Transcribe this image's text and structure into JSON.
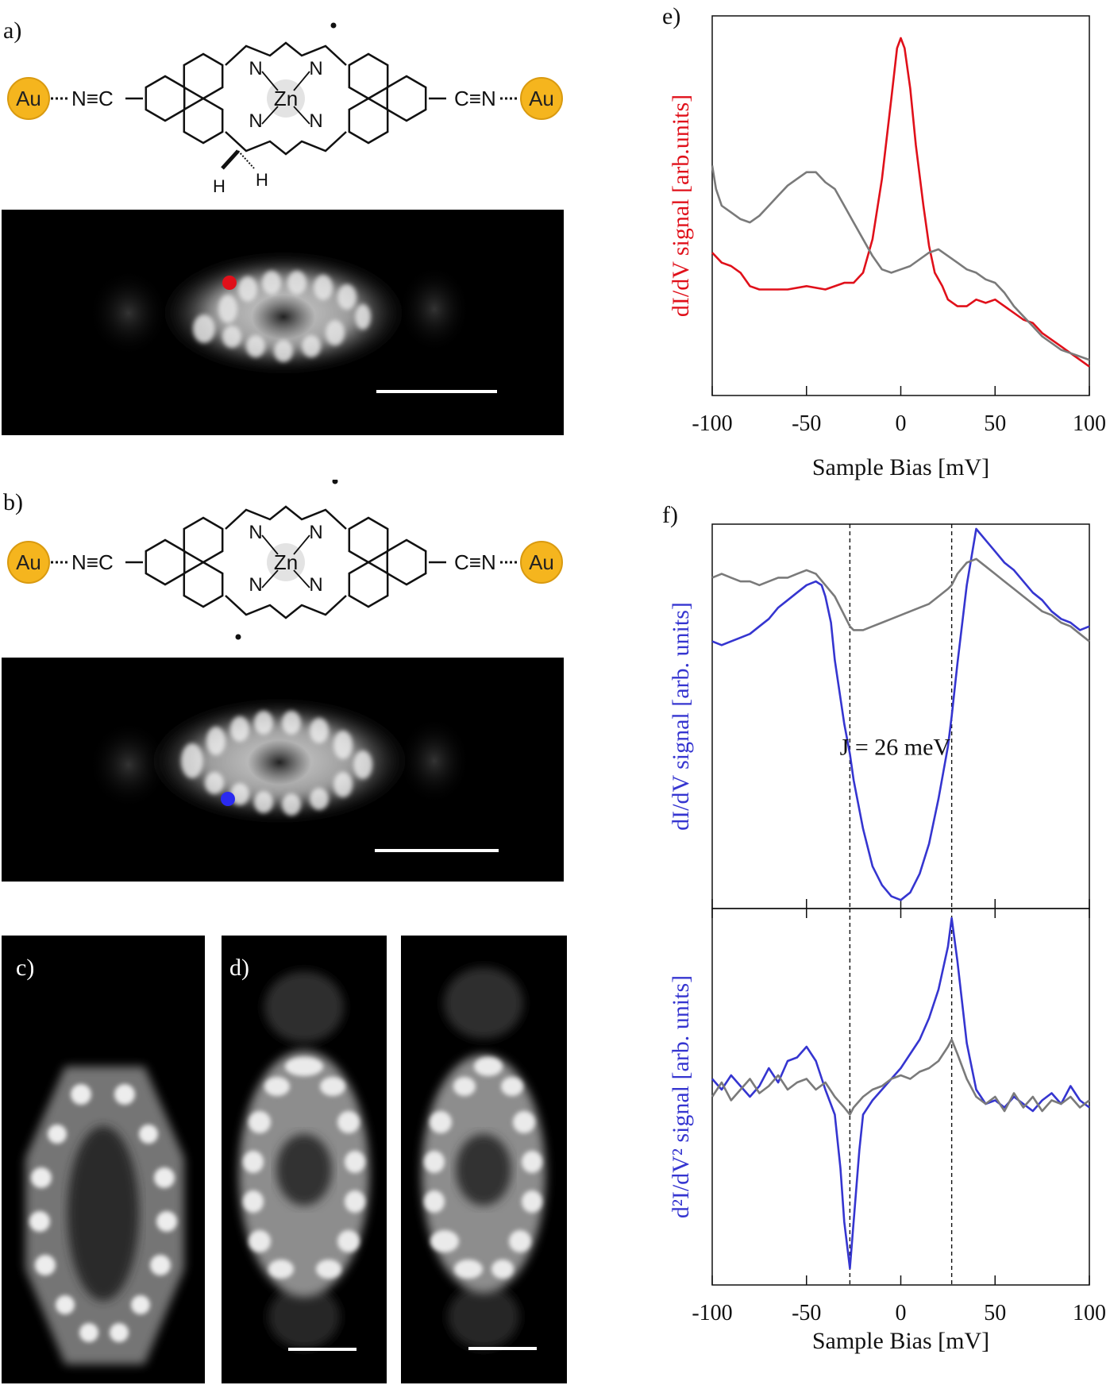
{
  "panels": {
    "a": "a)",
    "b": "b)",
    "c": "c)",
    "d": "d)",
    "e": "e)",
    "f": "f)"
  },
  "molecule": {
    "au_left": "Au",
    "au_right": "Au",
    "nc_left": "N≡C",
    "cn_right": "C≡N",
    "metal": "Zn",
    "n_label": "N",
    "h_label": "H"
  },
  "colors": {
    "red": "#e0101a",
    "blue": "#3535d0",
    "gray": "#7a7a7a",
    "au": "#f5b51e"
  },
  "chart_data": [
    {
      "id": "e",
      "type": "line",
      "ylabel": "dI/dV signal [arb.units]",
      "xlabel": "Sample Bias [mV]",
      "xlim": [
        -100,
        100
      ],
      "xticks": [
        -100,
        -50,
        0,
        50,
        100
      ],
      "series": [
        {
          "color": "#e0101a",
          "x": [
            -100,
            -95,
            -90,
            -85,
            -80,
            -75,
            -70,
            -60,
            -50,
            -40,
            -30,
            -25,
            -20,
            -15,
            -10,
            -5,
            -2,
            0,
            2,
            5,
            8,
            12,
            15,
            18,
            22,
            25,
            30,
            35,
            40,
            45,
            50,
            55,
            60,
            65,
            70,
            75,
            80,
            85,
            90,
            95,
            100
          ],
          "values": [
            0.36,
            0.33,
            0.32,
            0.3,
            0.26,
            0.25,
            0.25,
            0.25,
            0.26,
            0.25,
            0.27,
            0.27,
            0.3,
            0.4,
            0.58,
            0.82,
            0.97,
            1.0,
            0.97,
            0.85,
            0.68,
            0.5,
            0.38,
            0.3,
            0.26,
            0.22,
            0.2,
            0.2,
            0.22,
            0.21,
            0.22,
            0.2,
            0.18,
            0.16,
            0.15,
            0.12,
            0.1,
            0.08,
            0.06,
            0.04,
            0.02
          ]
        },
        {
          "color": "#7a7a7a",
          "x": [
            -100,
            -98,
            -95,
            -90,
            -85,
            -80,
            -75,
            -70,
            -65,
            -60,
            -55,
            -50,
            -45,
            -40,
            -35,
            -30,
            -25,
            -20,
            -15,
            -10,
            -5,
            0,
            5,
            10,
            15,
            20,
            25,
            30,
            35,
            40,
            45,
            50,
            55,
            60,
            65,
            70,
            75,
            80,
            85,
            90,
            95,
            100
          ],
          "values": [
            0.62,
            0.55,
            0.5,
            0.48,
            0.46,
            0.45,
            0.47,
            0.5,
            0.53,
            0.56,
            0.58,
            0.6,
            0.6,
            0.57,
            0.55,
            0.5,
            0.45,
            0.4,
            0.35,
            0.31,
            0.3,
            0.31,
            0.32,
            0.34,
            0.36,
            0.37,
            0.35,
            0.33,
            0.31,
            0.3,
            0.28,
            0.27,
            0.24,
            0.2,
            0.17,
            0.14,
            0.11,
            0.09,
            0.07,
            0.06,
            0.05,
            0.04
          ]
        }
      ]
    },
    {
      "id": "f-top",
      "type": "line",
      "ylabel": "dI/dV signal [arb. units]",
      "xlim": [
        -100,
        100
      ],
      "annotation": "J = 26 meV",
      "vlines": [
        -27,
        27
      ],
      "series": [
        {
          "color": "#3535d0",
          "x": [
            -100,
            -95,
            -90,
            -85,
            -80,
            -75,
            -70,
            -65,
            -60,
            -55,
            -50,
            -45,
            -42,
            -40,
            -37,
            -35,
            -30,
            -27,
            -25,
            -20,
            -15,
            -10,
            -5,
            0,
            5,
            10,
            15,
            20,
            25,
            27,
            30,
            35,
            40,
            45,
            50,
            55,
            60,
            65,
            70,
            75,
            80,
            85,
            90,
            95,
            100
          ],
          "values": [
            0.7,
            0.69,
            0.7,
            0.71,
            0.72,
            0.74,
            0.76,
            0.79,
            0.81,
            0.83,
            0.85,
            0.86,
            0.85,
            0.82,
            0.75,
            0.65,
            0.48,
            0.4,
            0.33,
            0.2,
            0.1,
            0.05,
            0.02,
            0.01,
            0.03,
            0.08,
            0.16,
            0.28,
            0.42,
            0.5,
            0.64,
            0.85,
            1.0,
            0.97,
            0.94,
            0.91,
            0.89,
            0.86,
            0.83,
            0.81,
            0.78,
            0.76,
            0.75,
            0.73,
            0.74
          ]
        },
        {
          "color": "#7a7a7a",
          "x": [
            -100,
            -95,
            -90,
            -85,
            -80,
            -75,
            -70,
            -65,
            -60,
            -55,
            -50,
            -45,
            -40,
            -35,
            -30,
            -27,
            -25,
            -20,
            -15,
            -10,
            -5,
            0,
            5,
            10,
            15,
            20,
            25,
            27,
            30,
            35,
            40,
            45,
            50,
            55,
            60,
            65,
            70,
            75,
            80,
            85,
            90,
            95,
            100
          ],
          "values": [
            0.87,
            0.88,
            0.87,
            0.86,
            0.86,
            0.85,
            0.86,
            0.87,
            0.87,
            0.88,
            0.89,
            0.88,
            0.85,
            0.82,
            0.77,
            0.74,
            0.73,
            0.73,
            0.74,
            0.75,
            0.76,
            0.77,
            0.78,
            0.79,
            0.8,
            0.82,
            0.84,
            0.85,
            0.88,
            0.91,
            0.92,
            0.9,
            0.88,
            0.86,
            0.84,
            0.82,
            0.8,
            0.78,
            0.77,
            0.75,
            0.74,
            0.72,
            0.7
          ]
        }
      ]
    },
    {
      "id": "f-bottom",
      "type": "line",
      "ylabel": "d²I/dV² signal [arb. units]",
      "xlabel": "Sample Bias [mV]",
      "xlim": [
        -100,
        100
      ],
      "xticks": [
        -100,
        -50,
        0,
        50,
        100
      ],
      "vlines": [
        -27,
        27
      ],
      "series": [
        {
          "color": "#3535d0",
          "x": [
            -100,
            -95,
            -90,
            -85,
            -80,
            -75,
            -70,
            -65,
            -60,
            -55,
            -50,
            -45,
            -40,
            -35,
            -32,
            -30,
            -27,
            -25,
            -22,
            -20,
            -15,
            -10,
            -5,
            0,
            5,
            10,
            15,
            20,
            25,
            27,
            30,
            35,
            40,
            45,
            50,
            55,
            60,
            65,
            70,
            75,
            80,
            85,
            90,
            95,
            100
          ],
          "values": [
            0.55,
            0.52,
            0.56,
            0.53,
            0.5,
            0.53,
            0.58,
            0.54,
            0.6,
            0.61,
            0.64,
            0.6,
            0.52,
            0.45,
            0.3,
            0.15,
            0.02,
            0.15,
            0.35,
            0.45,
            0.49,
            0.52,
            0.55,
            0.58,
            0.62,
            0.66,
            0.72,
            0.8,
            0.92,
            1.0,
            0.88,
            0.65,
            0.52,
            0.48,
            0.49,
            0.47,
            0.5,
            0.48,
            0.46,
            0.49,
            0.51,
            0.48,
            0.53,
            0.49,
            0.47
          ]
        },
        {
          "color": "#7a7a7a",
          "x": [
            -100,
            -95,
            -90,
            -85,
            -80,
            -75,
            -70,
            -65,
            -60,
            -55,
            -50,
            -45,
            -40,
            -35,
            -30,
            -27,
            -25,
            -20,
            -15,
            -10,
            -5,
            0,
            5,
            10,
            15,
            20,
            25,
            27,
            30,
            35,
            40,
            45,
            50,
            55,
            60,
            65,
            70,
            75,
            80,
            85,
            90,
            95,
            100
          ],
          "values": [
            0.5,
            0.54,
            0.49,
            0.52,
            0.55,
            0.51,
            0.53,
            0.56,
            0.52,
            0.54,
            0.55,
            0.52,
            0.54,
            0.5,
            0.47,
            0.45,
            0.47,
            0.5,
            0.52,
            0.53,
            0.55,
            0.56,
            0.55,
            0.57,
            0.58,
            0.6,
            0.64,
            0.66,
            0.62,
            0.55,
            0.5,
            0.48,
            0.5,
            0.46,
            0.51,
            0.47,
            0.5,
            0.46,
            0.49,
            0.48,
            0.5,
            0.47,
            0.49
          ]
        }
      ]
    }
  ]
}
